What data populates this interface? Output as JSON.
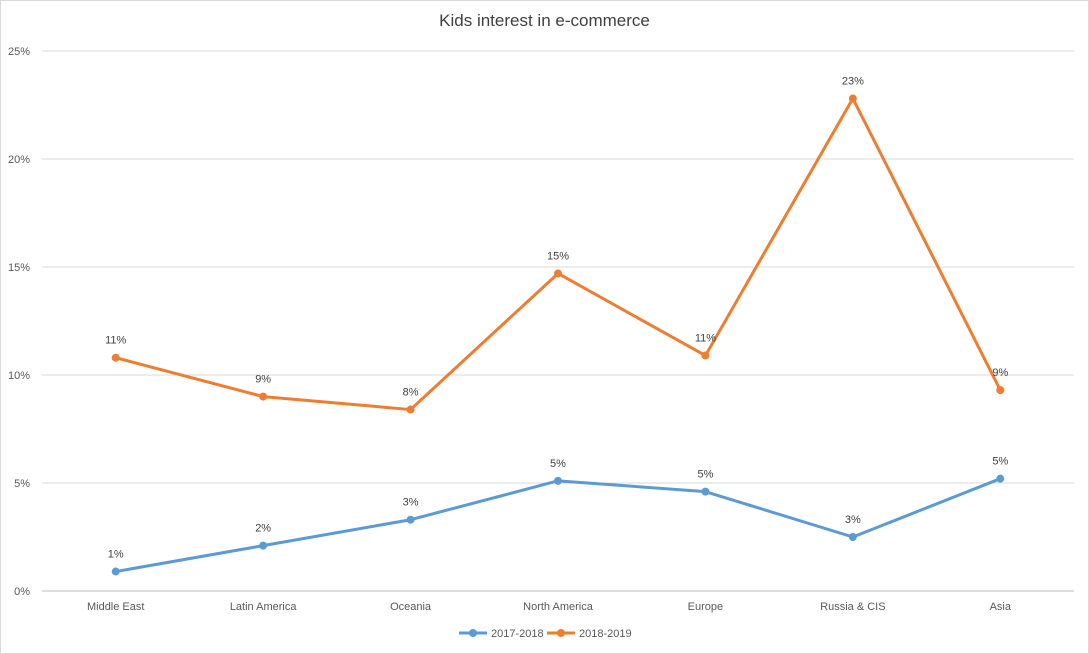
{
  "chart_data": {
    "type": "line",
    "title": "Kids interest in e-commerce",
    "xlabel": "",
    "ylabel": "",
    "categories": [
      "Middle East",
      "Latin America",
      "Oceania",
      "North America",
      "Europe",
      "Russia & CIS",
      "Asia"
    ],
    "ylim": [
      0,
      25
    ],
    "y_ticks": [
      "0%",
      "5%",
      "10%",
      "15%",
      "20%",
      "25%"
    ],
    "grid": true,
    "legend_position": "bottom",
    "series": [
      {
        "name": "2017-2018",
        "color": "#5b9bd5",
        "values": [
          0.9,
          2.1,
          3.3,
          5.1,
          4.6,
          2.5,
          5.2
        ],
        "labels": [
          "1%",
          "2%",
          "3%",
          "5%",
          "5%",
          "3%",
          "5%"
        ]
      },
      {
        "name": "2018-2019",
        "color": "#ed7d31",
        "values": [
          10.8,
          9.0,
          8.4,
          14.7,
          10.9,
          22.8,
          9.3
        ],
        "labels": [
          "11%",
          "9%",
          "8%",
          "15%",
          "11%",
          "23%",
          "9%"
        ]
      }
    ]
  }
}
